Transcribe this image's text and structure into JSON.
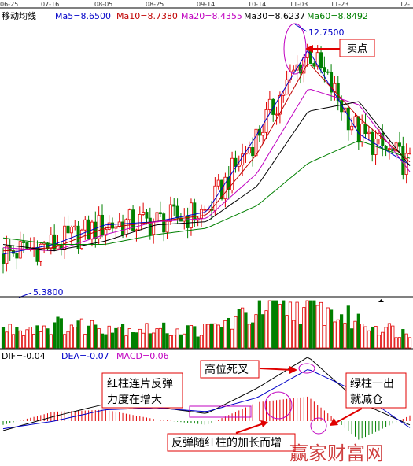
{
  "dates": [
    "06-25",
    "07-16",
    "08-05",
    "08-25",
    "09-14",
    "10-14",
    "11-03",
    "11-23",
    "12-"
  ],
  "panels": {
    "main": {
      "title": "移动均线",
      "ma": [
        {
          "label": "Ma5=8.6500",
          "color": "#0000c8"
        },
        {
          "label": "Ma10=8.7380",
          "color": "#c00000"
        },
        {
          "label": "Ma20=8.4355",
          "color": "#c000c0"
        },
        {
          "label": "Ma30=8.6237",
          "color": "#000000"
        },
        {
          "label": "Ma60=8.8492",
          "color": "#008000"
        }
      ],
      "high_label": "12.7500",
      "low_label": "5.3800",
      "sell_point": "卖点"
    },
    "macd": {
      "legend": [
        {
          "label": "DIF=-0.04",
          "color": "#000000"
        },
        {
          "label": "DEA=-0.07",
          "color": "#0000c8"
        },
        {
          "label": "MACD=0.06",
          "color": "#c000c0"
        }
      ],
      "annotations": {
        "red_bars": "红柱连片反弹\n力度在增大",
        "death_cross": "高位死叉",
        "green_bars": "绿柱一出\n就减仓",
        "rebound": "反弹随红柱的加长而增"
      }
    }
  },
  "watermark": "赢家财富网",
  "colors": {
    "up": "#e00000",
    "down": "#008000",
    "annot_border": "#e00000",
    "annot_text": "#000000"
  },
  "chart_data": [
    {
      "type": "line",
      "title": "移动均线",
      "x": [
        "06-25",
        "07-16",
        "08-05",
        "08-25",
        "09-14",
        "10-14",
        "11-03",
        "11-23",
        "12-"
      ],
      "series": [
        {
          "name": "Ma5",
          "values": [
            5.9,
            6.2,
            6.8,
            6.9,
            7.2,
            9.6,
            12.2,
            9.6,
            8.65
          ]
        },
        {
          "name": "Ma10",
          "values": [
            6.0,
            6.1,
            6.7,
            6.9,
            7.1,
            9.0,
            11.8,
            10.1,
            8.74
          ]
        },
        {
          "name": "Ma20",
          "values": [
            6.1,
            6.0,
            6.5,
            6.9,
            7.0,
            8.4,
            11.0,
            10.5,
            8.44
          ]
        },
        {
          "name": "Ma30",
          "values": [
            6.2,
            6.0,
            6.3,
            6.8,
            6.9,
            8.0,
            10.3,
            10.6,
            8.62
          ]
        },
        {
          "name": "Ma60",
          "values": [
            6.4,
            6.2,
            6.2,
            6.5,
            6.7,
            7.4,
            8.7,
            9.4,
            8.85
          ]
        }
      ],
      "annotations": [
        "12.7500",
        "5.3800",
        "卖点"
      ]
    },
    {
      "type": "bar",
      "title": "",
      "categories": [
        "06-25",
        "07-16",
        "08-05",
        "08-25",
        "09-14",
        "10-14",
        "11-03",
        "11-23",
        "12-"
      ],
      "values": [
        0.4,
        0.5,
        0.5,
        0.4,
        0.4,
        0.8,
        0.9,
        0.6,
        0.3
      ]
    },
    {
      "type": "line",
      "title": "",
      "x": [
        "06-25",
        "07-16",
        "08-05",
        "08-25",
        "09-14",
        "10-14",
        "11-03",
        "11-23",
        "12-"
      ],
      "series": [
        {
          "name": "DIF",
          "values": [
            -0.1,
            0.05,
            0.18,
            0.15,
            0.08,
            0.35,
            0.68,
            0.2,
            -0.04
          ]
        },
        {
          "name": "DEA",
          "values": [
            -0.08,
            0.0,
            0.12,
            0.14,
            0.1,
            0.25,
            0.55,
            0.3,
            -0.07
          ]
        },
        {
          "name": "MACD",
          "values": [
            -0.04,
            0.1,
            0.12,
            0.02,
            -0.04,
            0.2,
            0.26,
            -0.2,
            0.06
          ]
        }
      ],
      "annotations": [
        "红柱连片反弹力度在增大",
        "高位死叉",
        "绿柱一出就减仓",
        "反弹随红柱的加长而增"
      ]
    }
  ]
}
